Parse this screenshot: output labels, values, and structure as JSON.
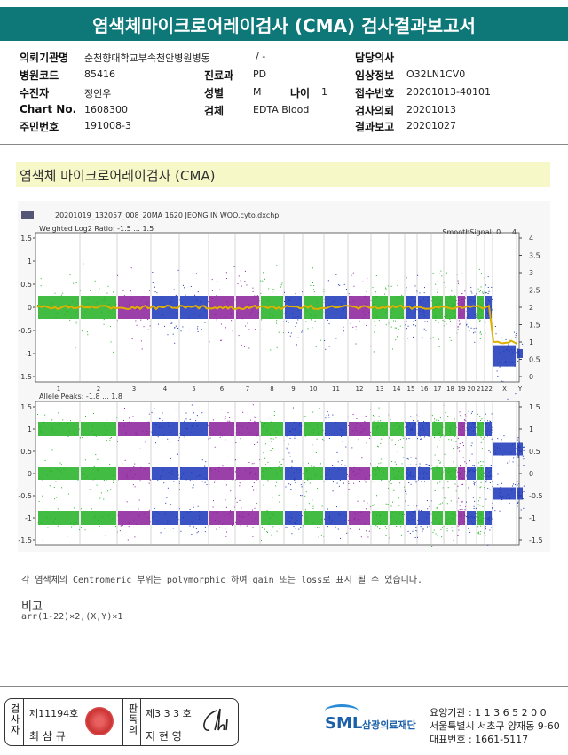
{
  "header": {
    "title": "염색체마이크로어레이검사 (CMA) 검사결과보고서"
  },
  "info": {
    "rows": [
      [
        {
          "label": "의뢰기관명",
          "value": "순천향대학교부속천안병원병동"
        },
        {
          "value": "/ -"
        },
        {
          "label": "담당의사"
        }
      ],
      [
        {
          "label": "병원코드",
          "value": "85416"
        },
        {
          "label": "진료과",
          "value": "PD"
        },
        {
          "label": "임상정보",
          "value": "O32LN1CV0"
        }
      ],
      [
        {
          "label": "수진자",
          "value": "정인우"
        },
        {
          "label": "성별",
          "value": "M"
        },
        {
          "label": "나이",
          "value": "1"
        },
        {
          "label": "접수번호",
          "value": "20201013-40101"
        }
      ],
      [
        {
          "label": "Chart No.",
          "value": "1608300"
        },
        {
          "label": "검체",
          "value": "EDTA Blood"
        },
        {
          "label": "검사의뢰",
          "value": "20201013"
        }
      ],
      [
        {
          "label": "주민번호",
          "value": "191008-3"
        },
        {
          "label": "결과보고",
          "value": "20201027"
        }
      ]
    ]
  },
  "section": {
    "title": "염색체 마이크로어레이검사 (CMA)"
  },
  "plot": {
    "file": "20201019_132057_008_20MA 1620 JEONG IN WOO.cyto.dxchp",
    "top": {
      "label": "Weighted Log2 Ratio: -1.5 ... 1.5",
      "right_label": "SmoothSignal: 0 ... 4",
      "left_ticks": [
        "1.5",
        "1",
        "0.5",
        "0",
        "-0.5",
        "-1",
        "-1.5"
      ],
      "right_ticks": [
        "4",
        "3.5",
        "3",
        "2.5",
        "2",
        "1.5",
        "1",
        "0.5",
        "0"
      ]
    },
    "bottom": {
      "label": "Allele Peaks: -1.8 ... 1.8",
      "left_ticks": [
        "1.5",
        "1",
        "0.5",
        "0",
        "-0.5",
        "-1",
        "-1.5"
      ],
      "right_ticks": [
        "1.5",
        "1",
        "0.5",
        "0",
        "-0.5",
        "-1",
        "-1.5"
      ]
    },
    "chromosomes": [
      "1",
      "2",
      "3",
      "4",
      "5",
      "6",
      "7",
      "8",
      "9",
      "10",
      "11",
      "12",
      "13",
      "14",
      "15",
      "16",
      "17",
      "18",
      "19",
      "20",
      "21",
      "22",
      "X",
      "Y"
    ]
  },
  "note": "각 염색체의 Centromeric 부위는 polymorphic 하여 gain 또는 loss로 표시 될 수 있습니다.",
  "remark": {
    "title": "비고",
    "text": "arr(1-22)×2,(X,Y)×1"
  },
  "footer": {
    "tester_label": "검사자",
    "tester_no": "제11194호",
    "tester_name": "최 삼 규",
    "reader_label": "판독의",
    "reader_no": "제3 3 3 호",
    "reader_name": "지 현 영",
    "logo": "SML",
    "org": "삼광의료재단",
    "lines": [
      "요양기관 : 1 1 3 6 5 2 0 0",
      "서울특별시 서초구 양재동 9-60",
      "대표번호 : 1661-5117"
    ]
  }
}
